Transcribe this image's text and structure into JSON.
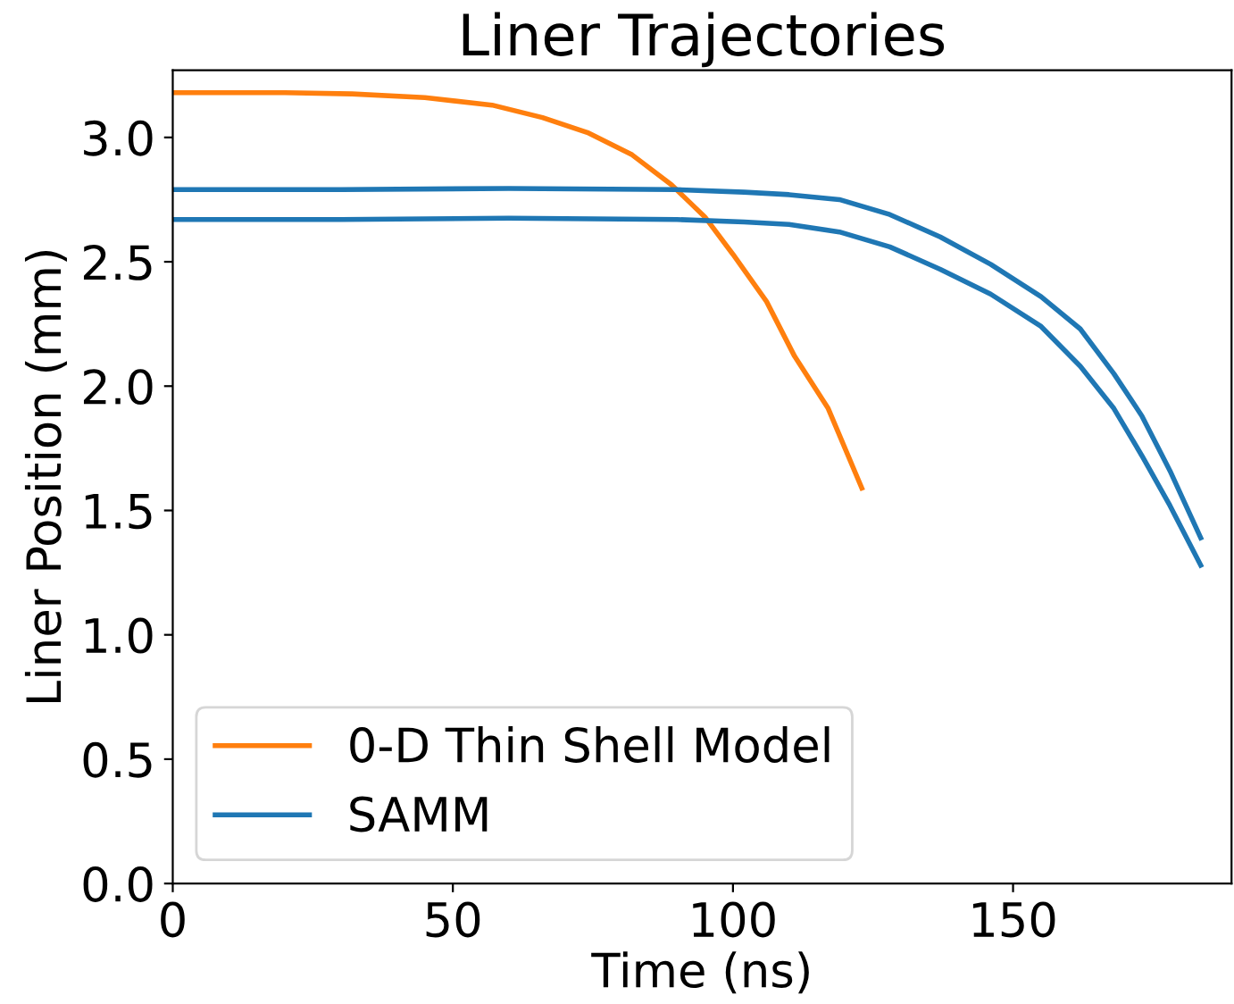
{
  "chart_data": {
    "type": "line",
    "title": "Liner Trajectories",
    "xlabel": "Time (ns)",
    "ylabel": "Liner Position (mm)",
    "xlim": [
      0,
      189
    ],
    "xticks": [
      0,
      50,
      100,
      150
    ],
    "ylim": [
      0,
      3.27
    ],
    "yticks": [
      {
        "value": 0,
        "label": "0.0"
      },
      {
        "value": 0.5,
        "label": "0.5"
      },
      {
        "value": 1,
        "label": "1.0"
      },
      {
        "value": 1.5,
        "label": "1.5"
      },
      {
        "value": 2,
        "label": "2.0"
      },
      {
        "value": 2.5,
        "label": "2.5"
      },
      {
        "value": 3,
        "label": "3.0"
      }
    ],
    "grid": false,
    "legend": "bottom left",
    "line_style": "solid",
    "series": [
      {
        "name": "0-D Thin Shell Model",
        "color": "#ff7f0e",
        "x": [
          0,
          20,
          32,
          45,
          57,
          66,
          74,
          82,
          89,
          95,
          100,
          106,
          111,
          117,
          123
        ],
        "values": [
          3.18,
          3.18,
          3.175,
          3.16,
          3.13,
          3.08,
          3.02,
          2.93,
          2.81,
          2.68,
          2.53,
          2.34,
          2.12,
          1.91,
          1.59
        ]
      },
      {
        "name": "SAMM",
        "color": "#1f77b4",
        "x": [
          0,
          30,
          60,
          90,
          102,
          110,
          119,
          128,
          137,
          146,
          155,
          162,
          168,
          173,
          178,
          183.5
        ],
        "values": [
          2.79,
          2.79,
          2.795,
          2.79,
          2.78,
          2.77,
          2.75,
          2.69,
          2.6,
          2.49,
          2.36,
          2.23,
          2.05,
          1.88,
          1.66,
          1.39
        ]
      },
      {
        "color": "#1f77b4",
        "x": [
          0,
          30,
          60,
          90,
          102,
          110,
          119,
          128,
          137,
          146,
          155,
          162,
          168,
          173,
          178,
          183.5
        ],
        "values": [
          2.67,
          2.67,
          2.675,
          2.67,
          2.66,
          2.65,
          2.62,
          2.56,
          2.47,
          2.37,
          2.24,
          2.08,
          1.91,
          1.72,
          1.52,
          1.28
        ]
      }
    ]
  }
}
